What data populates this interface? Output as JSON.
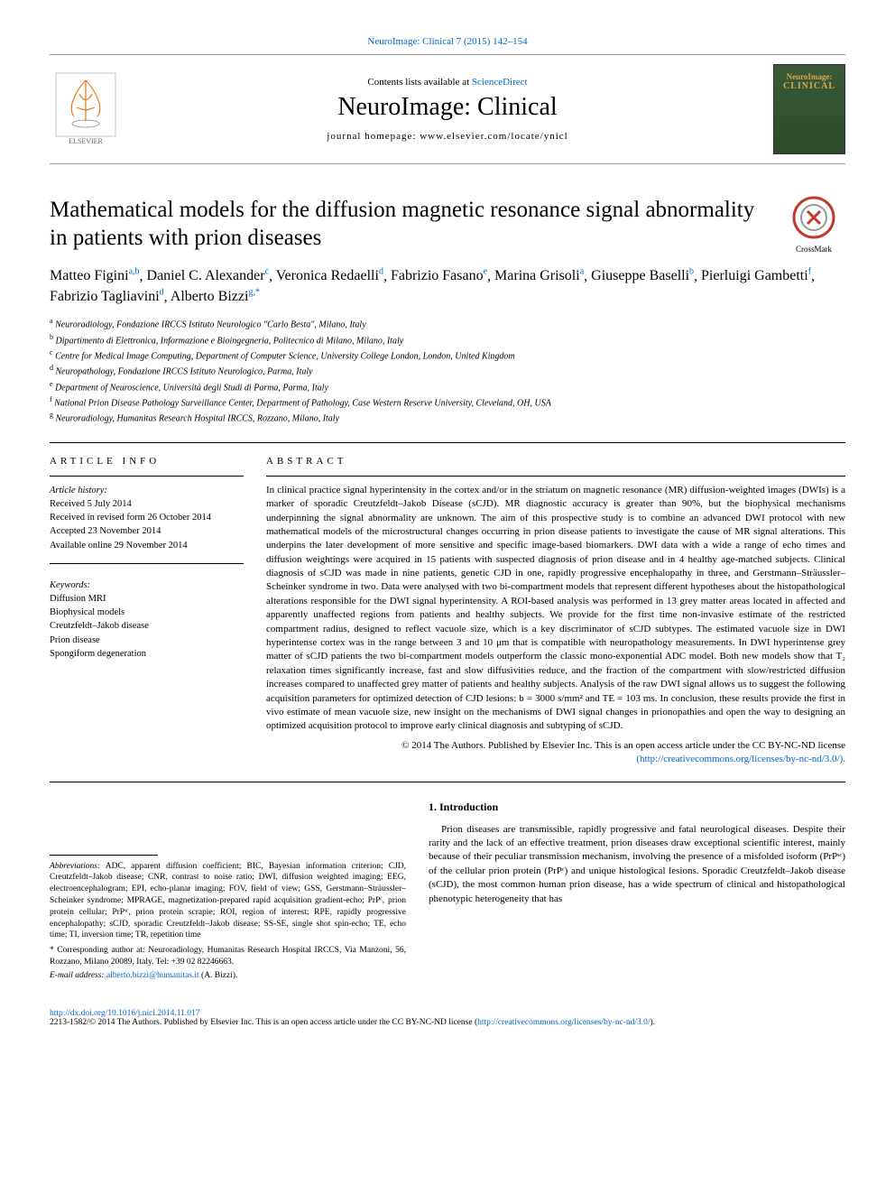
{
  "top_link": {
    "text": "NeuroImage: Clinical 7 (2015) 142–154",
    "url_label": "NeuroImage: Clinical 7 (2015) 142–154"
  },
  "header": {
    "contents_prefix": "Contents lists available at ",
    "contents_link": "ScienceDirect",
    "journal_name": "NeuroImage: Clinical",
    "homepage_label": "journal homepage: www.elsevier.com/locate/ynicl",
    "cover_line1": "NeuroImage:",
    "cover_line2": "CLINICAL"
  },
  "crossmark_label": "CrossMark",
  "title": "Mathematical models for the diffusion magnetic resonance signal abnormality in patients with prion diseases",
  "authors": [
    {
      "name": "Matteo Figini",
      "sup": "a,b"
    },
    {
      "name": "Daniel C. Alexander",
      "sup": "c"
    },
    {
      "name": "Veronica Redaelli",
      "sup": "d"
    },
    {
      "name": "Fabrizio Fasano",
      "sup": "e"
    },
    {
      "name": "Marina Grisoli",
      "sup": "a"
    },
    {
      "name": "Giuseppe Baselli",
      "sup": "b"
    },
    {
      "name": "Pierluigi Gambetti",
      "sup": "f"
    },
    {
      "name": "Fabrizio Tagliavini",
      "sup": "d"
    },
    {
      "name": "Alberto Bizzi",
      "sup": "g,*"
    }
  ],
  "affiliations": [
    {
      "sup": "a",
      "text": "Neuroradiology, Fondazione IRCCS Istituto Neurologico \"Carlo Besta\", Milano, Italy"
    },
    {
      "sup": "b",
      "text": "Dipartimento di Elettronica, Informazione e Bioingegneria, Politecnico di Milano, Milano, Italy"
    },
    {
      "sup": "c",
      "text": "Centre for Medical Image Computing, Department of Computer Science, University College London, London, United Kingdom"
    },
    {
      "sup": "d",
      "text": "Neuropathology, Fondazione IRCCS Istituto Neurologico, Parma, Italy"
    },
    {
      "sup": "e",
      "text": "Department of Neuroscience, Università degli Studi di Parma, Parma, Italy"
    },
    {
      "sup": "f",
      "text": "National Prion Disease Pathology Surveillance Center, Department of Pathology, Case Western Reserve University, Cleveland, OH, USA"
    },
    {
      "sup": "g",
      "text": "Neuroradiology, Humanitas Research Hospital IRCCS, Rozzano, Milano, Italy"
    }
  ],
  "article_info": {
    "heading": "ARTICLE INFO",
    "history_label": "Article history:",
    "received": "Received 5 July 2014",
    "revised": "Received in revised form 26 October 2014",
    "accepted": "Accepted 23 November 2014",
    "online": "Available online 29 November 2014",
    "keywords_label": "Keywords:",
    "keywords": [
      "Diffusion MRI",
      "Biophysical models",
      "Creutzfeldt–Jakob disease",
      "Prion disease",
      "Spongiform degeneration"
    ]
  },
  "abstract": {
    "heading": "ABSTRACT",
    "text": "In clinical practice signal hyperintensity in the cortex and/or in the striatum on magnetic resonance (MR) diffusion-weighted images (DWIs) is a marker of sporadic Creutzfeldt–Jakob Disease (sCJD). MR diagnostic accuracy is greater than 90%, but the biophysical mechanisms underpinning the signal abnormality are unknown. The aim of this prospective study is to combine an advanced DWI protocol with new mathematical models of the microstructural changes occurring in prion disease patients to investigate the cause of MR signal alterations. This underpins the later development of more sensitive and specific image-based biomarkers. DWI data with a wide a range of echo times and diffusion weightings were acquired in 15 patients with suspected diagnosis of prion disease and in 4 healthy age-matched subjects. Clinical diagnosis of sCJD was made in nine patients, genetic CJD in one, rapidly progressive encephalopathy in three, and Gerstmann–Sträussler–Scheinker syndrome in two. Data were analysed with two bi-compartment models that represent different hypotheses about the histopathological alterations responsible for the DWI signal hyperintensity. A ROI-based analysis was performed in 13 grey matter areas located in affected and apparently unaffected regions from patients and healthy subjects. We provide for the first time non-invasive estimate of the restricted compartment radius, designed to reflect vacuole size, which is a key discriminator of sCJD subtypes. The estimated vacuole size in DWI hyperintense cortex was in the range between 3 and 10 μm that is compatible with neuropathology measurements. In DWI hyperintense grey matter of sCJD patients the two bi-compartment models outperform the classic mono-exponential ADC model. Both new models show that T₂ relaxation times significantly increase, fast and slow diffusivities reduce, and the fraction of the compartment with slow/restricted diffusion increases compared to unaffected grey matter of patients and healthy subjects. Analysis of the raw DWI signal allows us to suggest the following acquisition parameters for optimized detection of CJD lesions: b = 3000 s/mm² and TE = 103 ms. In conclusion, these results provide the first in vivo estimate of mean vacuole size, new insight on the mechanisms of DWI signal changes in prionopathies and open the way to designing an optimized acquisition protocol to improve early clinical diagnosis and subtyping of sCJD.",
    "copyright": "© 2014 The Authors. Published by Elsevier Inc. This is an open access article under the CC BY-NC-ND license",
    "license_url_text": "(http://creativecommons.org/licenses/by-nc-nd/3.0/)."
  },
  "footnotes": {
    "abbreviations_label": "Abbreviations:",
    "abbreviations": "ADC, apparent diffusion coefficient; BIC, Bayesian information criterion; CJD, Creutzfeldt–Jakob disease; CNR, contrast to noise ratio; DWI, diffusion weighted imaging; EEG, electroencephalogram; EPI, echo-planar imaging; FOV, field of view; GSS, Gerstmann–Sträussler–Scheinker syndrome; MPRAGE, magnetization-prepared rapid acquisition gradient-echo; PrPᶜ, prion protein cellular; PrPˢᶜ, prion protein scrapie; ROI, region of interest; RPE, rapidly progressive encephalopathy; sCJD, sporadic Creutzfeldt–Jakob disease; SS-SE, single shot spin-echo; TE, echo time; TI, inversion time; TR, repetition time",
    "corresponding_label": "* Corresponding author at:",
    "corresponding": "Neuroradiology, Humanitas Research Hospital IRCCS, Via Manzoni, 56, Rozzano, Milano 20089, Italy. Tel: +39 02 82246663.",
    "email_label": "E-mail address:",
    "email": "alberto.bizzi@humanitas.it",
    "email_suffix": "(A. Bizzi)."
  },
  "intro": {
    "heading": "1. Introduction",
    "body": "Prion diseases are transmissible, rapidly progressive and fatal neurological diseases. Despite their rarity and the lack of an effective treatment, prion diseases draw exceptional scientific interest, mainly because of their peculiar transmission mechanism, involving the presence of a misfolded isoform (PrPˢᶜ) of the cellular prion protein (PrPᶜ) and unique histological lesions. Sporadic Creutzfeldt–Jakob disease (sCJD), the most common human prion disease, has a wide spectrum of clinical and histopathological phenotypic heterogeneity that has"
  },
  "bottom": {
    "doi": "http://dx.doi.org/10.1016/j.nicl.2014.11.017",
    "license": "2213-1582/© 2014 The Authors. Published by Elsevier Inc. This is an open access article under the CC BY-NC-ND license (",
    "license_url": "http://creativecommons.org/licenses/by-nc-nd/3.0/",
    "license_suffix": ")."
  },
  "colors": {
    "link": "#0066cc",
    "text": "#000000",
    "border": "#999999",
    "elsevier_orange": "#e67817",
    "cover_bg": "#3a5a3a",
    "cover_text": "#d4a84a"
  }
}
